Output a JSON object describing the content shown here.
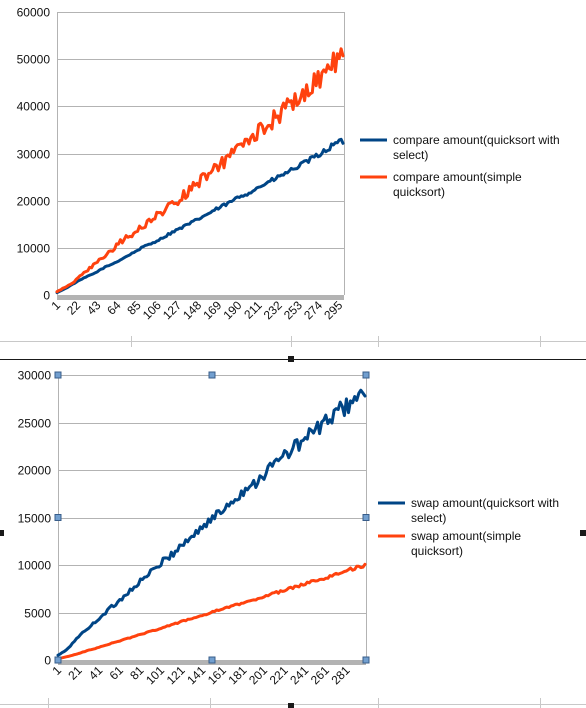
{
  "colors": {
    "blue": "#004586",
    "orange": "#ff420e",
    "axis_band": "#b3b3b3",
    "grid": "#b3b3b3",
    "handle_fill": "#729fcf",
    "handle_stroke": "#385d8a"
  },
  "chart_data": [
    {
      "type": "line",
      "title": "",
      "xlabel": "",
      "ylabel": "",
      "ylim": [
        0,
        60000
      ],
      "yticks": [
        "0",
        "10000",
        "20000",
        "30000",
        "40000",
        "50000",
        "60000"
      ],
      "xlim": [
        1,
        300
      ],
      "xticks": [
        "1",
        "22",
        "43",
        "64",
        "85",
        "106",
        "127",
        "148",
        "169",
        "190",
        "211",
        "232",
        "253",
        "274",
        "295"
      ],
      "grid": "horizontal",
      "legend": "right",
      "series": [
        {
          "name": "compare amount(quicksort with select)",
          "legend_lines": [
            "compare amount(quicksort with",
            "select)"
          ],
          "color": "#004586",
          "x": [
            1,
            10,
            20,
            30,
            40,
            50,
            60,
            70,
            80,
            90,
            100,
            110,
            120,
            130,
            140,
            150,
            160,
            170,
            180,
            190,
            200,
            210,
            220,
            230,
            240,
            250,
            260,
            270,
            280,
            290,
            300
          ],
          "values": [
            500,
            1400,
            2600,
            3700,
            4600,
            5800,
            6700,
            7800,
            8900,
            10100,
            11000,
            12000,
            13200,
            14200,
            15200,
            16300,
            17400,
            18500,
            19500,
            20700,
            21600,
            22700,
            23800,
            24800,
            25900,
            27000,
            28100,
            29300,
            30500,
            32000,
            32700
          ]
        },
        {
          "name": "compare amount(simple quicksort)",
          "legend_lines": [
            "compare amount(simple",
            "quicksort)"
          ],
          "color": "#ff420e",
          "x": [
            1,
            10,
            20,
            30,
            40,
            50,
            60,
            70,
            80,
            90,
            100,
            110,
            120,
            130,
            140,
            150,
            160,
            170,
            180,
            190,
            200,
            210,
            220,
            230,
            240,
            250,
            260,
            270,
            280,
            290,
            300
          ],
          "values": [
            700,
            1700,
            3000,
            4800,
            6500,
            8000,
            9900,
            11700,
            13000,
            14400,
            16200,
            17500,
            19000,
            20600,
            22200,
            24300,
            25600,
            27300,
            29300,
            30800,
            32500,
            34700,
            36400,
            37700,
            39500,
            41500,
            43300,
            45200,
            47000,
            49500,
            50500
          ]
        }
      ]
    },
    {
      "type": "line",
      "title": "",
      "xlabel": "",
      "ylabel": "",
      "ylim": [
        0,
        30000
      ],
      "yticks": [
        "0",
        "5000",
        "10000",
        "15000",
        "20000",
        "25000",
        "30000"
      ],
      "xlim": [
        1,
        300
      ],
      "xticks": [
        "1",
        "21",
        "41",
        "61",
        "81",
        "101",
        "121",
        "141",
        "161",
        "181",
        "201",
        "221",
        "241",
        "261",
        "281"
      ],
      "grid": "horizontal",
      "legend": "right",
      "selected": true,
      "series": [
        {
          "name": "swap amount(quicksort with select)",
          "legend_lines": [
            "swap amount(quicksort with",
            "select)"
          ],
          "color": "#004586",
          "x": [
            1,
            10,
            20,
            30,
            40,
            50,
            60,
            70,
            80,
            90,
            100,
            110,
            120,
            130,
            140,
            150,
            160,
            170,
            180,
            190,
            200,
            210,
            220,
            230,
            240,
            250,
            260,
            270,
            280,
            290,
            300
          ],
          "values": [
            500,
            1100,
            2400,
            3300,
            4300,
            5300,
            6200,
            7200,
            8200,
            9100,
            10100,
            11000,
            12000,
            12900,
            13900,
            14800,
            15700,
            16800,
            17700,
            18500,
            19500,
            20500,
            21500,
            22300,
            23200,
            24100,
            25000,
            25800,
            26700,
            27600,
            28000
          ]
        },
        {
          "name": "swap amount(simple quicksort)",
          "legend_lines": [
            "swap amount(simple",
            "quicksort)"
          ],
          "color": "#ff420e",
          "x": [
            1,
            10,
            20,
            30,
            40,
            50,
            60,
            70,
            80,
            90,
            100,
            110,
            120,
            130,
            140,
            150,
            160,
            170,
            180,
            190,
            200,
            210,
            220,
            230,
            240,
            250,
            260,
            270,
            280,
            290,
            300
          ],
          "values": [
            150,
            350,
            650,
            1000,
            1300,
            1650,
            2000,
            2300,
            2650,
            3000,
            3300,
            3650,
            4000,
            4350,
            4650,
            5000,
            5350,
            5650,
            6000,
            6300,
            6650,
            7000,
            7300,
            7650,
            8000,
            8350,
            8650,
            9000,
            9350,
            9700,
            10000
          ]
        }
      ]
    }
  ]
}
